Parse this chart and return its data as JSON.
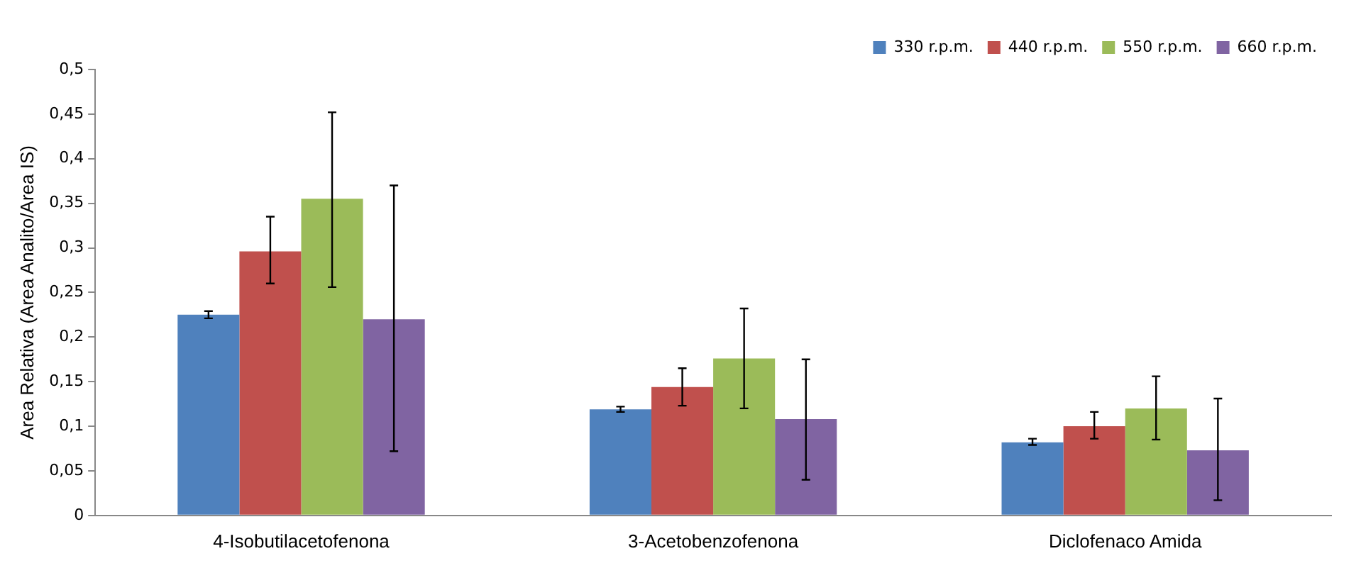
{
  "chart_data": {
    "type": "bar",
    "ylabel": "Area Relativa (Area Analito/Area IS)",
    "categories": [
      "4-Isobutilacetofenona",
      "3-Acetobenzofenona",
      "Diclofenaco Amida"
    ],
    "series": [
      {
        "name": "330 r.p.m.",
        "color": "#4f81bd",
        "values": [
          0.225,
          0.119,
          0.082
        ],
        "errors": [
          [
            0.221,
            0.229
          ],
          [
            0.116,
            0.122
          ],
          [
            0.079,
            0.086
          ]
        ]
      },
      {
        "name": "440 r.p.m.",
        "color": "#c0504d",
        "values": [
          0.296,
          0.144,
          0.1
        ],
        "errors": [
          [
            0.26,
            0.335
          ],
          [
            0.123,
            0.165
          ],
          [
            0.086,
            0.116
          ]
        ]
      },
      {
        "name": "550 r.p.m.",
        "color": "#9bbb59",
        "values": [
          0.355,
          0.176,
          0.12
        ],
        "errors": [
          [
            0.256,
            0.452
          ],
          [
            0.12,
            0.232
          ],
          [
            0.085,
            0.156
          ]
        ]
      },
      {
        "name": "660 r.p.m.",
        "color": "#8064a2",
        "values": [
          0.22,
          0.108,
          0.073
        ],
        "errors": [
          [
            0.072,
            0.37
          ],
          [
            0.04,
            0.175
          ],
          [
            0.017,
            0.131
          ]
        ]
      }
    ],
    "ylim": [
      0,
      0.5
    ],
    "yticks": [
      0,
      {
        "value": 0.05,
        "label": "0,05"
      },
      {
        "value": 0.1,
        "label": "0,1"
      },
      {
        "value": 0.15,
        "label": "0,15"
      },
      {
        "value": 0.2,
        "label": "0,2"
      },
      {
        "value": 0.25,
        "label": "0,25"
      },
      {
        "value": 0.3,
        "label": "0,3"
      },
      {
        "value": 0.35,
        "label": "0,35"
      },
      {
        "value": 0.4,
        "label": "0,4"
      },
      {
        "value": 0.45,
        "label": "0,45"
      },
      {
        "value": 0.5,
        "label": "0,5"
      }
    ],
    "grid": false,
    "legend": "top right"
  }
}
